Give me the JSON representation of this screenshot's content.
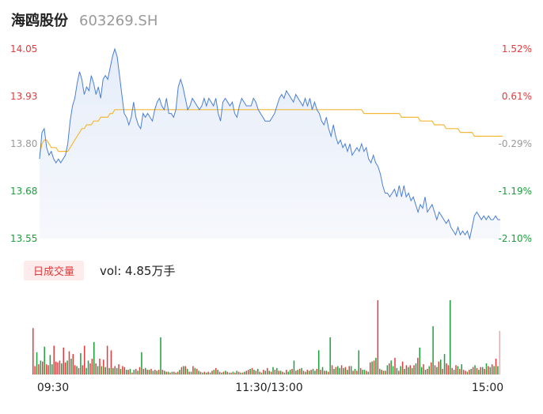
{
  "header": {
    "name": "海鸥股份",
    "code": "603269.SH"
  },
  "volume_panel": {
    "tab_label": "日成交量",
    "volume_text": "vol: 4.85万手"
  },
  "colors": {
    "price_line": "#4a7fd6",
    "avg_line": "#f4b93a",
    "up": "#e4393c",
    "down": "#1a9f3a",
    "neutral": "#999999"
  },
  "chart_data": [
    {
      "type": "line",
      "title": "",
      "ylim": [
        13.55,
        14.05
      ],
      "y_ticks_left": [
        "14.05",
        "13.93",
        "13.80",
        "13.68",
        "13.55"
      ],
      "y_ticks_right": [
        "1.52%",
        "0.61%",
        "-0.29%",
        "-1.19%",
        "-2.10%"
      ],
      "x_ticks": [
        "09:30",
        "11:30/13:00",
        "15:00"
      ],
      "series": [
        {
          "values": [
            13.76,
            13.83,
            13.84,
            13.79,
            13.77,
            13.78,
            13.76,
            13.75,
            13.76,
            13.75,
            13.76,
            13.77,
            13.8,
            13.86,
            13.9,
            13.92,
            13.96,
            13.99,
            13.97,
            13.93,
            13.95,
            13.94,
            13.98,
            13.96,
            13.93,
            13.95,
            13.92,
            13.97,
            13.98,
            13.97,
            14.0,
            14.03,
            14.05,
            14.03,
            13.98,
            13.93,
            13.88,
            13.87,
            13.85,
            13.87,
            13.91,
            13.87,
            13.85,
            13.84,
            13.88,
            13.87,
            13.88,
            13.87,
            13.86,
            13.89,
            13.91,
            13.92,
            13.9,
            13.89,
            13.92,
            13.88,
            13.88,
            13.87,
            13.89,
            13.95,
            13.97,
            13.95,
            13.92,
            13.89,
            13.9,
            13.92,
            13.91,
            13.9,
            13.89,
            13.9,
            13.92,
            13.9,
            13.92,
            13.91,
            13.9,
            13.92,
            13.88,
            13.86,
            13.91,
            13.92,
            13.91,
            13.9,
            13.91,
            13.88,
            13.87,
            13.9,
            13.92,
            13.91,
            13.9,
            13.9,
            13.9,
            13.92,
            13.91,
            13.89,
            13.88,
            13.87,
            13.86,
            13.86,
            13.86,
            13.87,
            13.88,
            13.9,
            13.92,
            13.93,
            13.92,
            13.94,
            13.93,
            13.92,
            13.91,
            13.93,
            13.92,
            13.91,
            13.9,
            13.92,
            13.9,
            13.92,
            13.89,
            13.91,
            13.89,
            13.88,
            13.86,
            13.85,
            13.87,
            13.84,
            13.82,
            13.85,
            13.82,
            13.8,
            13.81,
            13.79,
            13.8,
            13.78,
            13.8,
            13.77,
            13.78,
            13.79,
            13.78,
            13.8,
            13.78,
            13.79,
            13.76,
            13.75,
            13.77,
            13.75,
            13.74,
            13.72,
            13.69,
            13.67,
            13.67,
            13.66,
            13.67,
            13.68,
            13.66,
            13.69,
            13.66,
            13.69,
            13.66,
            13.67,
            13.65,
            13.66,
            13.64,
            13.62,
            13.64,
            13.63,
            13.66,
            13.62,
            13.63,
            13.64,
            13.62,
            13.6,
            13.62,
            13.61,
            13.6,
            13.59,
            13.6,
            13.58,
            13.57,
            13.56,
            13.58,
            13.56,
            13.57,
            13.56,
            13.57,
            13.55,
            13.58,
            13.61,
            13.62,
            13.61,
            13.6,
            13.61,
            13.6,
            13.61,
            13.6,
            13.6,
            13.61,
            13.6,
            13.6
          ]
        },
        {
          "values": [
            13.77,
            13.8,
            13.81,
            13.81,
            13.8,
            13.79,
            13.79,
            13.79,
            13.78,
            13.78,
            13.78,
            13.78,
            13.78,
            13.79,
            13.8,
            13.81,
            13.82,
            13.83,
            13.84,
            13.84,
            13.85,
            13.85,
            13.85,
            13.86,
            13.86,
            13.86,
            13.87,
            13.87,
            13.87,
            13.87,
            13.88,
            13.88,
            13.89,
            13.89,
            13.89,
            13.89,
            13.89,
            13.89,
            13.89,
            13.89,
            13.89,
            13.89,
            13.89,
            13.89,
            13.89,
            13.89,
            13.89,
            13.89,
            13.89,
            13.89,
            13.89,
            13.89,
            13.89,
            13.89,
            13.89,
            13.89,
            13.89,
            13.89,
            13.89,
            13.89,
            13.89,
            13.89,
            13.89,
            13.89,
            13.89,
            13.89,
            13.89,
            13.89,
            13.89,
            13.89,
            13.89,
            13.89,
            13.89,
            13.89,
            13.89,
            13.89,
            13.89,
            13.89,
            13.89,
            13.89,
            13.89,
            13.89,
            13.89,
            13.89,
            13.89,
            13.89,
            13.89,
            13.89,
            13.89,
            13.89,
            13.89,
            13.89,
            13.89,
            13.89,
            13.89,
            13.89,
            13.89,
            13.89,
            13.89,
            13.89,
            13.89,
            13.89,
            13.89,
            13.89,
            13.89,
            13.89,
            13.89,
            13.89,
            13.89,
            13.89,
            13.89,
            13.89,
            13.89,
            13.89,
            13.89,
            13.89,
            13.89,
            13.89,
            13.89,
            13.89,
            13.89,
            13.89,
            13.89,
            13.89,
            13.89,
            13.89,
            13.89,
            13.89,
            13.89,
            13.89,
            13.89,
            13.89,
            13.89,
            13.89,
            13.89,
            13.89,
            13.89,
            13.89,
            13.88,
            13.88,
            13.88,
            13.88,
            13.88,
            13.88,
            13.88,
            13.88,
            13.88,
            13.88,
            13.88,
            13.88,
            13.88,
            13.88,
            13.88,
            13.88,
            13.87,
            13.87,
            13.87,
            13.87,
            13.87,
            13.87,
            13.87,
            13.87,
            13.86,
            13.86,
            13.86,
            13.86,
            13.86,
            13.86,
            13.85,
            13.85,
            13.85,
            13.85,
            13.85,
            13.84,
            13.84,
            13.84,
            13.84,
            13.84,
            13.84,
            13.83,
            13.83,
            13.83,
            13.83,
            13.83,
            13.83,
            13.82,
            13.82,
            13.82,
            13.82,
            13.82,
            13.82,
            13.82,
            13.82,
            13.82,
            13.82,
            13.82,
            13.82,
            13.82
          ]
        }
      ]
    },
    {
      "type": "bar",
      "title": "",
      "values": [
        1.0,
        0.18,
        0.48,
        0.22,
        0.3,
        0.28,
        0.6,
        0.22,
        0.2,
        0.42,
        0.22,
        0.62,
        0.28,
        0.26,
        0.3,
        0.24,
        0.58,
        0.26,
        0.3,
        0.5,
        0.34,
        0.44,
        0.2,
        0.18,
        0.14,
        0.46,
        0.2,
        0.62,
        0.14,
        0.3,
        0.24,
        0.34,
        0.7,
        0.24,
        0.18,
        0.34,
        0.18,
        0.32,
        0.16,
        0.62,
        0.14,
        0.52,
        0.14,
        0.18,
        0.14,
        0.22,
        0.12,
        0.18,
        0.16,
        0.1,
        0.1,
        0.12,
        0.04,
        0.1,
        0.12,
        0.08,
        0.16,
        0.48,
        0.12,
        0.14,
        0.1,
        0.1,
        0.12,
        0.08,
        0.1,
        0.08,
        0.1,
        0.8,
        0.1,
        0.08,
        0.06,
        0.06,
        0.04,
        0.06,
        0.06,
        0.04,
        0.06,
        0.1,
        0.16,
        0.18,
        0.18,
        0.12,
        0.06,
        0.06,
        0.18,
        0.14,
        0.12,
        0.08,
        0.06,
        0.04,
        0.06,
        0.04,
        0.06,
        0.04,
        0.08,
        0.1,
        0.14,
        0.1,
        0.06,
        0.04,
        0.06,
        0.08,
        0.06,
        0.04,
        0.04,
        0.06,
        0.04,
        0.08,
        0.06,
        0.04,
        0.04,
        0.06,
        0.08,
        0.1,
        0.12,
        0.14,
        0.1,
        0.08,
        0.12,
        0.06,
        0.04,
        0.1,
        0.08,
        0.14,
        0.08,
        0.06,
        0.16,
        0.1,
        0.14,
        0.08,
        0.08,
        0.06,
        0.04,
        0.1,
        0.06,
        0.1,
        0.12,
        0.3,
        0.08,
        0.1,
        0.12,
        0.14,
        0.08,
        0.06,
        0.1,
        0.08,
        0.1,
        0.12,
        0.08,
        0.12,
        0.52,
        0.1,
        0.16,
        0.08,
        0.08,
        0.06,
        0.8,
        0.2,
        0.12,
        0.16,
        0.18,
        0.14,
        0.2,
        0.14,
        0.16,
        0.1,
        0.18,
        0.18,
        0.08,
        0.12,
        0.08,
        0.52,
        0.14,
        0.1,
        0.1,
        0.08,
        0.06,
        0.26,
        0.28,
        0.3,
        0.36,
        1.6,
        0.12,
        0.1,
        0.08,
        0.08,
        0.2,
        0.24,
        0.3,
        0.18,
        0.36,
        0.14,
        0.08,
        0.18,
        0.28,
        0.12,
        0.2,
        0.16,
        0.2,
        0.14,
        0.2,
        0.24,
        0.36,
        0.58,
        0.16,
        0.22,
        0.1,
        0.12,
        0.18,
        0.26,
        1.04,
        0.2,
        0.16,
        0.28,
        0.32,
        0.12,
        0.44,
        0.24,
        0.2,
        1.6,
        0.14,
        0.1,
        0.2,
        0.18,
        0.12,
        0.22,
        0.1,
        0.08,
        0.06,
        0.1,
        0.12,
        0.16,
        0.2,
        0.14,
        0.1,
        0.16,
        0.16,
        0.12,
        0.24,
        0.18,
        0.16,
        0.22,
        0.18,
        0.34,
        0.18,
        0.94
      ],
      "directions": [
        "up",
        "up",
        "down",
        "up",
        "down",
        "up",
        "down",
        "up",
        "up",
        "down",
        "down",
        "up",
        "up",
        "up",
        "up",
        "down",
        "up",
        "up",
        "down",
        "up",
        "down",
        "up",
        "up",
        "down",
        "up",
        "down",
        "up",
        "up",
        "down",
        "down",
        "up",
        "up",
        "down",
        "up",
        "down",
        "up",
        "down",
        "up",
        "down",
        "up",
        "down",
        "up",
        "down",
        "up",
        "down",
        "up",
        "down",
        "up",
        "up",
        "down",
        "up",
        "down",
        "up",
        "down",
        "up",
        "down",
        "up",
        "down",
        "up",
        "down",
        "up",
        "down",
        "up",
        "down",
        "up",
        "down",
        "up",
        "down",
        "up",
        "down",
        "up",
        "down",
        "up",
        "down",
        "up",
        "down",
        "up",
        "down",
        "up",
        "down",
        "up",
        "down",
        "up",
        "down",
        "up",
        "down",
        "up",
        "down",
        "up",
        "down",
        "up",
        "down",
        "up",
        "down",
        "up",
        "down",
        "up",
        "down",
        "up",
        "down",
        "up",
        "down",
        "up",
        "down",
        "up",
        "down",
        "up",
        "down",
        "up",
        "down",
        "up",
        "down",
        "up",
        "up",
        "down",
        "up",
        "down",
        "up",
        "down",
        "up",
        "down",
        "up",
        "down",
        "up",
        "down",
        "up",
        "down",
        "up",
        "down",
        "up",
        "down",
        "up",
        "down",
        "up",
        "down",
        "down",
        "up",
        "down",
        "up",
        "down",
        "up",
        "down",
        "up",
        "down",
        "up",
        "down",
        "up",
        "down",
        "down",
        "up",
        "down",
        "up",
        "down",
        "up",
        "down",
        "up",
        "down",
        "up",
        "down",
        "up",
        "down",
        "down",
        "up",
        "down",
        "up",
        "down",
        "up",
        "down",
        "up",
        "down",
        "up",
        "down",
        "up",
        "down",
        "down",
        "up",
        "down",
        "up",
        "down",
        "up",
        "down",
        "up",
        "down",
        "up",
        "down",
        "up",
        "down",
        "up",
        "down",
        "down",
        "up",
        "down",
        "up",
        "down",
        "up",
        "down",
        "up",
        "down",
        "up",
        "down",
        "up",
        "down",
        "up",
        "down",
        "down",
        "up",
        "down",
        "up",
        "down",
        "up",
        "down",
        "up",
        "down",
        "up",
        "down",
        "up",
        "down",
        "up",
        "up",
        "down",
        "up",
        "down",
        "up",
        "down",
        "up",
        "down",
        "up",
        "up",
        "down",
        "up",
        "down",
        "up",
        "down",
        "up",
        "down",
        "up",
        "down",
        "up",
        "down",
        "up",
        "down",
        "up",
        "down",
        "up",
        "down",
        "up",
        "down",
        "up",
        "down",
        "up",
        "up"
      ]
    }
  ]
}
